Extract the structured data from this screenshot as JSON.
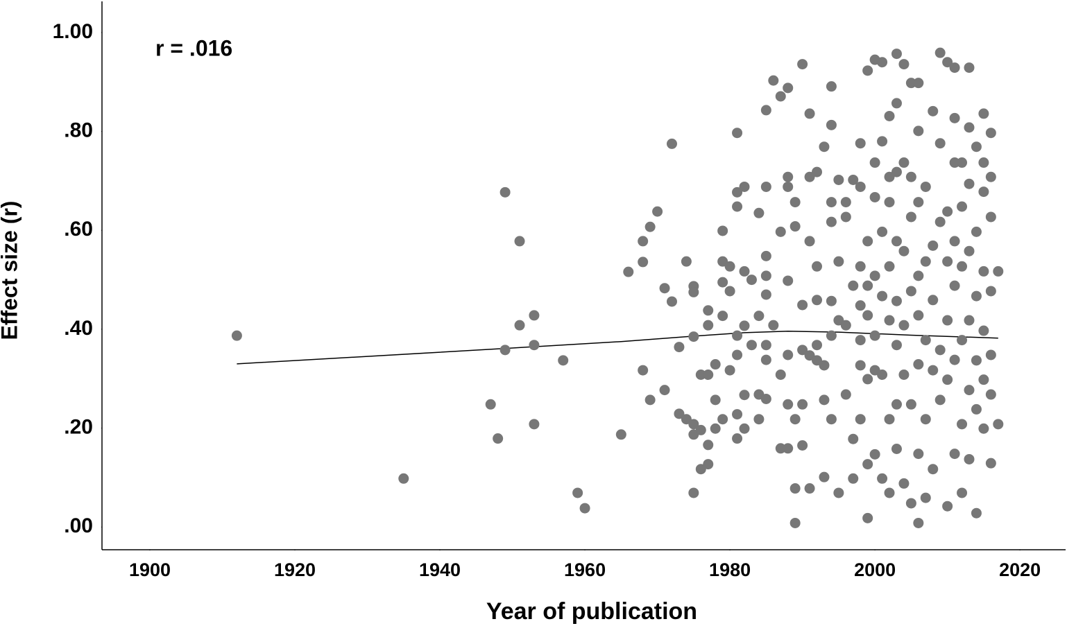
{
  "chart_data": {
    "type": "scatter",
    "x_label": "Year of publication",
    "y_label": "Effect size (r)",
    "annotation": "r = .016",
    "color": "#777777",
    "xlim": [
      1893.4,
      2026.3
    ],
    "ylim": [
      -0.046,
      1.063
    ],
    "xticks": [
      1900,
      1920,
      1940,
      1960,
      1980,
      2000,
      2020
    ],
    "yticks": [
      {
        "value": 0,
        "label": ".00"
      },
      {
        "value": 0.2,
        "label": ".20"
      },
      {
        "value": 0.4,
        "label": ".40"
      },
      {
        "value": 0.6,
        "label": ".60"
      },
      {
        "value": 0.8,
        "label": ".80"
      },
      {
        "value": 1,
        "label": "1.00"
      }
    ],
    "x": [
      1912,
      1935,
      1949,
      1951,
      1951,
      1953,
      1953,
      1953,
      1949,
      1947,
      1948,
      1957,
      1959,
      1960,
      1965,
      1966,
      1968,
      1968,
      1968,
      1969,
      1970,
      1969,
      1971,
      1971,
      1972,
      1972,
      1973,
      1973,
      1974,
      1974,
      1975,
      1975,
      1975,
      1975,
      1975,
      1975,
      1976,
      1976,
      1976,
      1977,
      1977,
      1977,
      1977,
      1977,
      1978,
      1978,
      1978,
      1979,
      1979,
      1979,
      1979,
      1979,
      1980,
      1980,
      1980,
      1981,
      1981,
      1981,
      1981,
      1981,
      1981,
      1981,
      1982,
      1982,
      1982,
      1982,
      1982,
      1983,
      1983,
      1984,
      1984,
      1984,
      1984,
      1985,
      1985,
      1985,
      1985,
      1985,
      1985,
      1985,
      1985,
      1986,
      1986,
      1987,
      1987,
      1987,
      1987,
      1988,
      1988,
      1988,
      1988,
      1988,
      1988,
      1988,
      1989,
      1989,
      1989,
      1989,
      1989,
      1990,
      1990,
      1990,
      1990,
      1990,
      1991,
      1991,
      1991,
      1991,
      1991,
      1992,
      1992,
      1992,
      1992,
      1992,
      1993,
      1993,
      1993,
      1993,
      1994,
      1994,
      1994,
      1994,
      1994,
      1994,
      1994,
      1995,
      1995,
      1995,
      1995,
      1996,
      1996,
      1996,
      1996,
      1997,
      1997,
      1997,
      1997,
      1998,
      1998,
      1998,
      1998,
      1998,
      1998,
      1998,
      1999,
      1999,
      1999,
      1999,
      1999,
      1999,
      1999,
      2000,
      2000,
      2000,
      2000,
      2000,
      2000,
      2000,
      2001,
      2001,
      2001,
      2001,
      2001,
      2001,
      2002,
      2002,
      2002,
      2002,
      2002,
      2002,
      2002,
      2003,
      2003,
      2003,
      2003,
      2003,
      2003,
      2003,
      2003,
      2004,
      2004,
      2004,
      2004,
      2004,
      2004,
      2005,
      2005,
      2005,
      2005,
      2005,
      2005,
      2006,
      2006,
      2006,
      2006,
      2006,
      2006,
      2006,
      2006,
      2007,
      2007,
      2007,
      2007,
      2007,
      2008,
      2008,
      2008,
      2008,
      2008,
      2009,
      2009,
      2009,
      2009,
      2009,
      2010,
      2010,
      2010,
      2010,
      2010,
      2010,
      2011,
      2011,
      2011,
      2011,
      2011,
      2011,
      2011,
      2012,
      2012,
      2012,
      2012,
      2012,
      2012,
      2013,
      2013,
      2013,
      2013,
      2013,
      2013,
      2013,
      2014,
      2014,
      2014,
      2014,
      2014,
      2014,
      2015,
      2015,
      2015,
      2015,
      2015,
      2015,
      2015,
      2016,
      2016,
      2016,
      2016,
      2016,
      2016,
      2016,
      2017,
      2017
    ],
    "values": [
      0.387,
      0.098,
      0.677,
      0.578,
      0.408,
      0.428,
      0.368,
      0.208,
      0.358,
      0.248,
      0.179,
      0.337,
      0.069,
      0.038,
      0.187,
      0.516,
      0.536,
      0.578,
      0.317,
      0.607,
      0.638,
      0.257,
      0.483,
      0.277,
      0.775,
      0.456,
      0.364,
      0.229,
      0.537,
      0.218,
      0.487,
      0.475,
      0.385,
      0.208,
      0.187,
      0.069,
      0.308,
      0.196,
      0.117,
      0.438,
      0.408,
      0.308,
      0.166,
      0.127,
      0.329,
      0.257,
      0.199,
      0.599,
      0.537,
      0.495,
      0.427,
      0.218,
      0.527,
      0.477,
      0.317,
      0.797,
      0.677,
      0.648,
      0.387,
      0.348,
      0.228,
      0.179,
      0.688,
      0.517,
      0.407,
      0.267,
      0.199,
      0.5,
      0.368,
      0.635,
      0.427,
      0.268,
      0.218,
      0.688,
      0.548,
      0.508,
      0.47,
      0.368,
      0.338,
      0.259,
      0.843,
      0.903,
      0.408,
      0.871,
      0.597,
      0.308,
      0.159,
      0.888,
      0.708,
      0.688,
      0.498,
      0.348,
      0.248,
      0.159,
      0.657,
      0.608,
      0.218,
      0.078,
      0.008,
      0.936,
      0.449,
      0.358,
      0.248,
      0.165,
      0.836,
      0.708,
      0.578,
      0.347,
      0.078,
      0.718,
      0.527,
      0.459,
      0.368,
      0.337,
      0.769,
      0.327,
      0.257,
      0.101,
      0.891,
      0.813,
      0.657,
      0.617,
      0.457,
      0.387,
      0.218,
      0.702,
      0.537,
      0.418,
      0.069,
      0.657,
      0.627,
      0.408,
      0.268,
      0.702,
      0.488,
      0.178,
      0.098,
      0.776,
      0.688,
      0.527,
      0.448,
      0.378,
      0.327,
      0.218,
      0.923,
      0.578,
      0.488,
      0.428,
      0.299,
      0.127,
      0.018,
      0.945,
      0.737,
      0.667,
      0.508,
      0.387,
      0.317,
      0.147,
      0.94,
      0.78,
      0.597,
      0.467,
      0.308,
      0.098,
      0.831,
      0.708,
      0.657,
      0.527,
      0.418,
      0.218,
      0.069,
      0.957,
      0.857,
      0.718,
      0.578,
      0.457,
      0.368,
      0.248,
      0.158,
      0.936,
      0.737,
      0.558,
      0.408,
      0.308,
      0.088,
      0.898,
      0.708,
      0.627,
      0.477,
      0.248,
      0.048,
      0.898,
      0.801,
      0.657,
      0.508,
      0.428,
      0.329,
      0.148,
      0.008,
      0.688,
      0.537,
      0.378,
      0.218,
      0.059,
      0.841,
      0.569,
      0.459,
      0.317,
      0.117,
      0.959,
      0.776,
      0.617,
      0.358,
      0.257,
      0.94,
      0.638,
      0.537,
      0.418,
      0.298,
      0.042,
      0.929,
      0.827,
      0.737,
      0.578,
      0.488,
      0.338,
      0.148,
      0.737,
      0.648,
      0.527,
      0.378,
      0.208,
      0.069,
      0.929,
      0.808,
      0.694,
      0.558,
      0.418,
      0.277,
      0.137,
      0.769,
      0.597,
      0.467,
      0.337,
      0.238,
      0.028,
      0.836,
      0.737,
      0.678,
      0.517,
      0.397,
      0.298,
      0.199,
      0.797,
      0.708,
      0.627,
      0.477,
      0.348,
      0.268,
      0.129,
      0.517,
      0.208
    ],
    "fit": {
      "color": "#000000",
      "x": [
        1912,
        1930,
        1950,
        1965,
        1975,
        1982,
        1988,
        1995,
        2005,
        2017
      ],
      "values": [
        0.33,
        0.345,
        0.362,
        0.375,
        0.386,
        0.393,
        0.396,
        0.394,
        0.388,
        0.382
      ]
    }
  }
}
